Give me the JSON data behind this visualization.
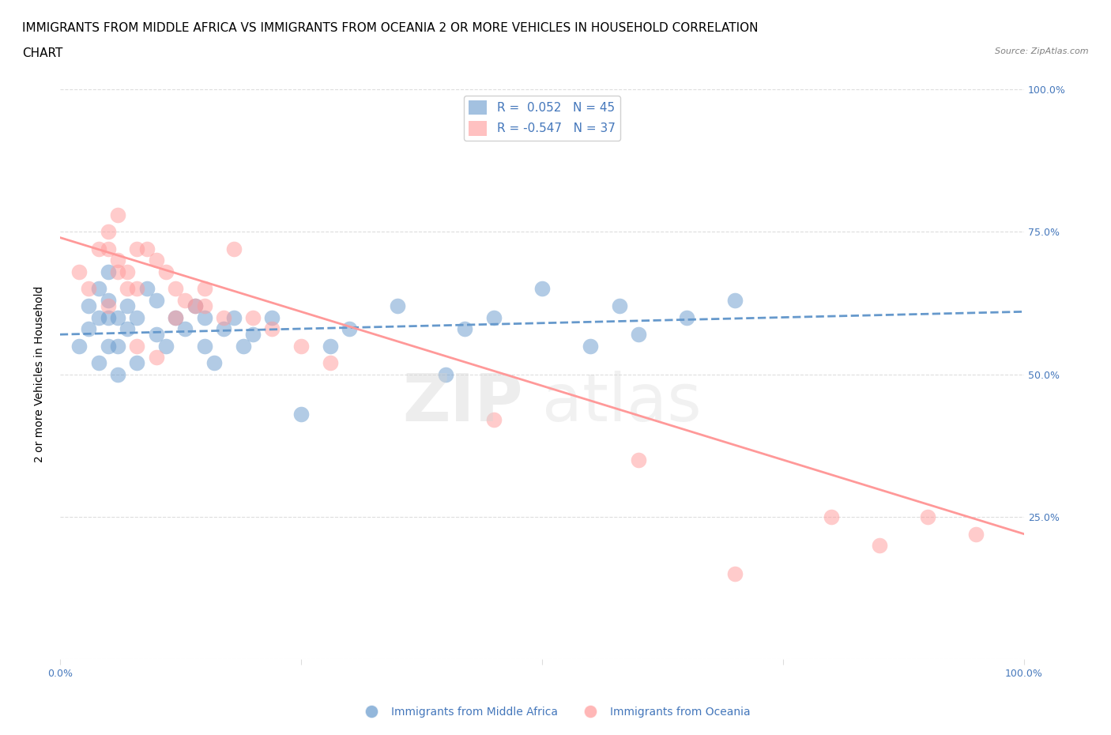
{
  "title_line1": "IMMIGRANTS FROM MIDDLE AFRICA VS IMMIGRANTS FROM OCEANIA 2 OR MORE VEHICLES IN HOUSEHOLD CORRELATION",
  "title_line2": "CHART",
  "source": "Source: ZipAtlas.com",
  "ylabel": "2 or more Vehicles in Household",
  "xlim": [
    0,
    100
  ],
  "ylim": [
    0,
    100
  ],
  "yticks_pct": [
    0,
    25,
    50,
    75,
    100
  ],
  "ytick_labels_right": [
    "",
    "25.0%",
    "50.0%",
    "75.0%",
    "100.0%"
  ],
  "blue_color": "#6699cc",
  "pink_color": "#ff9999",
  "R_blue": 0.052,
  "N_blue": 45,
  "R_pink": -0.547,
  "N_pink": 37,
  "legend_text_color": "#4477bb",
  "blue_scatter_x": [
    2,
    3,
    3,
    4,
    4,
    4,
    5,
    5,
    5,
    5,
    6,
    6,
    6,
    7,
    7,
    8,
    8,
    9,
    10,
    10,
    11,
    12,
    13,
    14,
    15,
    15,
    16,
    17,
    18,
    19,
    20,
    22,
    25,
    28,
    30,
    35,
    40,
    42,
    45,
    50,
    55,
    58,
    60,
    65,
    70
  ],
  "blue_scatter_y": [
    55,
    58,
    62,
    52,
    60,
    65,
    55,
    60,
    63,
    68,
    50,
    55,
    60,
    58,
    62,
    52,
    60,
    65,
    57,
    63,
    55,
    60,
    58,
    62,
    55,
    60,
    52,
    58,
    60,
    55,
    57,
    60,
    43,
    55,
    58,
    62,
    50,
    58,
    60,
    65,
    55,
    62,
    57,
    60,
    63
  ],
  "pink_scatter_x": [
    2,
    3,
    4,
    5,
    6,
    7,
    8,
    9,
    10,
    11,
    12,
    13,
    15,
    17,
    18,
    20,
    22,
    25,
    28,
    8,
    10,
    12,
    14,
    15,
    5,
    6,
    7,
    8,
    5,
    6,
    45,
    60,
    70,
    80,
    85,
    90,
    95
  ],
  "pink_scatter_y": [
    68,
    65,
    72,
    62,
    70,
    68,
    65,
    72,
    70,
    68,
    65,
    63,
    62,
    60,
    72,
    60,
    58,
    55,
    52,
    55,
    53,
    60,
    62,
    65,
    72,
    68,
    65,
    72,
    75,
    78,
    42,
    35,
    15,
    25,
    20,
    25,
    22
  ],
  "blue_line_y_intercept": 57,
  "blue_line_slope": 0.04,
  "pink_line_y_intercept": 74,
  "pink_line_slope": -0.52,
  "grid_color": "#dddddd",
  "background_color": "#ffffff",
  "title_fontsize": 11,
  "axis_label_fontsize": 10,
  "tick_fontsize": 9,
  "legend_fontsize": 11
}
